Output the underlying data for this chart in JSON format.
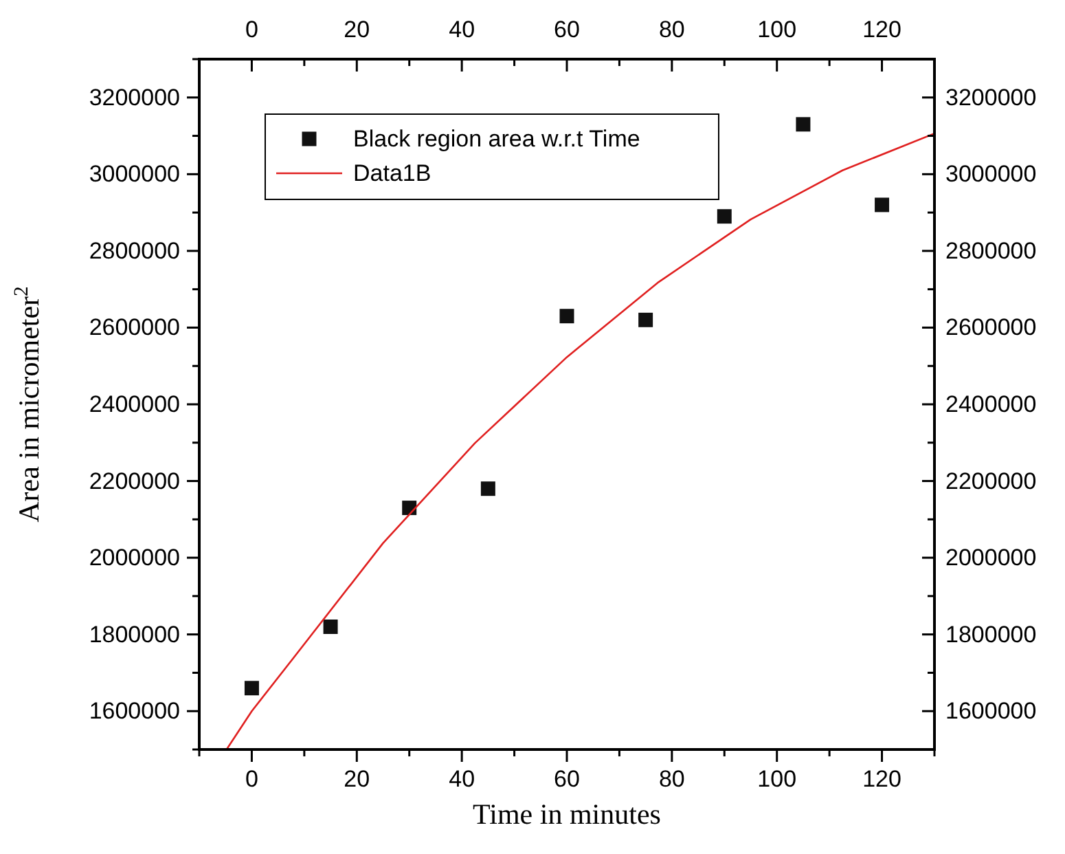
{
  "chart_data": {
    "type": "scatter",
    "xlabel": "Time in minutes",
    "ylabel": "Area in micrometer$^{2}$",
    "xlim": [
      -10,
      130
    ],
    "ylim": [
      1500000,
      3300000
    ],
    "x2lim": [
      -10,
      130
    ],
    "y2lim": [
      1500000,
      3300000
    ],
    "xticks": [
      {
        "value": -10,
        "label": null
      },
      0,
      {
        "value": 10,
        "label": null
      },
      20,
      {
        "value": 30,
        "label": null
      },
      40,
      {
        "value": 50,
        "label": null
      },
      60,
      {
        "value": 70,
        "label": null
      },
      80,
      {
        "value": 90,
        "label": null
      },
      100,
      {
        "value": 110,
        "label": null
      },
      120,
      {
        "value": 130,
        "label": null
      }
    ],
    "x2ticks": [
      {
        "value": -10,
        "label": null
      },
      0,
      {
        "value": 10,
        "label": null
      },
      20,
      {
        "value": 30,
        "label": null
      },
      40,
      {
        "value": 50,
        "label": null
      },
      60,
      {
        "value": 70,
        "label": null
      },
      80,
      {
        "value": 90,
        "label": null
      },
      100,
      {
        "value": 110,
        "label": null
      },
      120,
      {
        "value": 130,
        "label": null
      }
    ],
    "yticks": [
      {
        "value": 1500000,
        "label": null
      },
      1600000,
      {
        "value": 1700000,
        "label": null
      },
      1800000,
      {
        "value": 1900000,
        "label": null
      },
      2000000,
      {
        "value": 2100000,
        "label": null
      },
      2200000,
      {
        "value": 2300000,
        "label": null
      },
      2400000,
      {
        "value": 2500000,
        "label": null
      },
      2600000,
      {
        "value": 2700000,
        "label": null
      },
      2800000,
      {
        "value": 2900000,
        "label": null
      },
      3000000,
      {
        "value": 3100000,
        "label": null
      },
      3200000,
      {
        "value": 3300000,
        "label": null
      }
    ],
    "y2ticks": [
      {
        "value": 1500000,
        "label": null
      },
      1600000,
      {
        "value": 1700000,
        "label": null
      },
      1800000,
      {
        "value": 1900000,
        "label": null
      },
      2000000,
      {
        "value": 2100000,
        "label": null
      },
      2200000,
      {
        "value": 2300000,
        "label": null
      },
      2400000,
      {
        "value": 2500000,
        "label": null
      },
      2600000,
      {
        "value": 2700000,
        "label": null
      },
      2800000,
      {
        "value": 2900000,
        "label": null
      },
      3000000,
      {
        "value": 3100000,
        "label": null
      },
      3200000,
      {
        "value": 3300000,
        "label": null
      }
    ],
    "legend": "top left",
    "grid": false,
    "series": [
      {
        "name": "Black region area w.r.t Time",
        "marker": "square",
        "color": "#111111",
        "x": [
          0,
          15,
          30,
          45,
          60,
          75,
          90,
          105,
          120
        ],
        "values": [
          1660000,
          1820000,
          2130000,
          2180000,
          2630000,
          2620000,
          2890000,
          3130000,
          2920000
        ]
      },
      {
        "name": "Data1B",
        "type": "line",
        "marker": "none",
        "line_style": "solid",
        "color": "#e02020",
        "x": [
          -4.8,
          0,
          7.9,
          25,
          42.5,
          60,
          77.5,
          95,
          112.5,
          130
        ],
        "values": [
          1500000,
          1600000,
          1738000,
          2038000,
          2299000,
          2523000,
          2719000,
          2882000,
          3010000,
          3106000
        ]
      }
    ]
  }
}
